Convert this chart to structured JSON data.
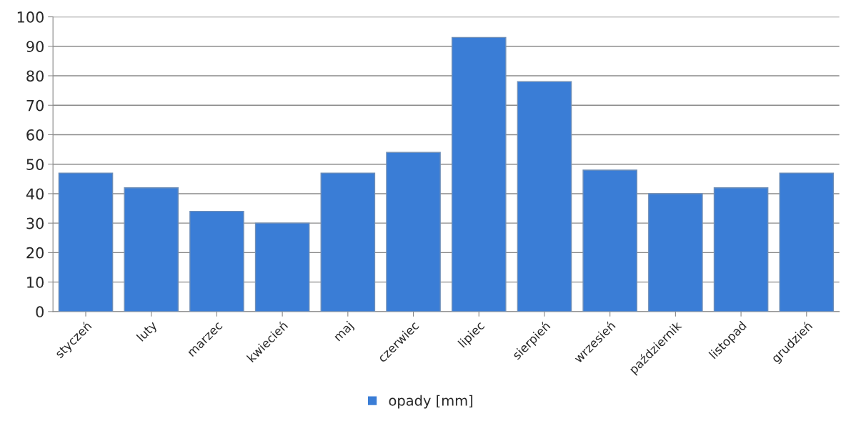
{
  "chart_data": {
    "type": "bar",
    "categories": [
      "styczeń",
      "luty",
      "marzec",
      "kwiecień",
      "maj",
      "czerwiec",
      "lipiec",
      "sierpień",
      "wrzesień",
      "październik",
      "listopad",
      "grudzień"
    ],
    "series": [
      {
        "name": "opady [mm]",
        "color": "#3a7dd6",
        "values": [
          47,
          42,
          34,
          30,
          47,
          54,
          93,
          78,
          48,
          40,
          42,
          47
        ]
      }
    ],
    "ylim": [
      0,
      100
    ],
    "yticks": [
      0,
      10,
      20,
      30,
      40,
      50,
      60,
      70,
      80,
      90,
      100
    ],
    "grid": "y",
    "legend": "bottom"
  }
}
